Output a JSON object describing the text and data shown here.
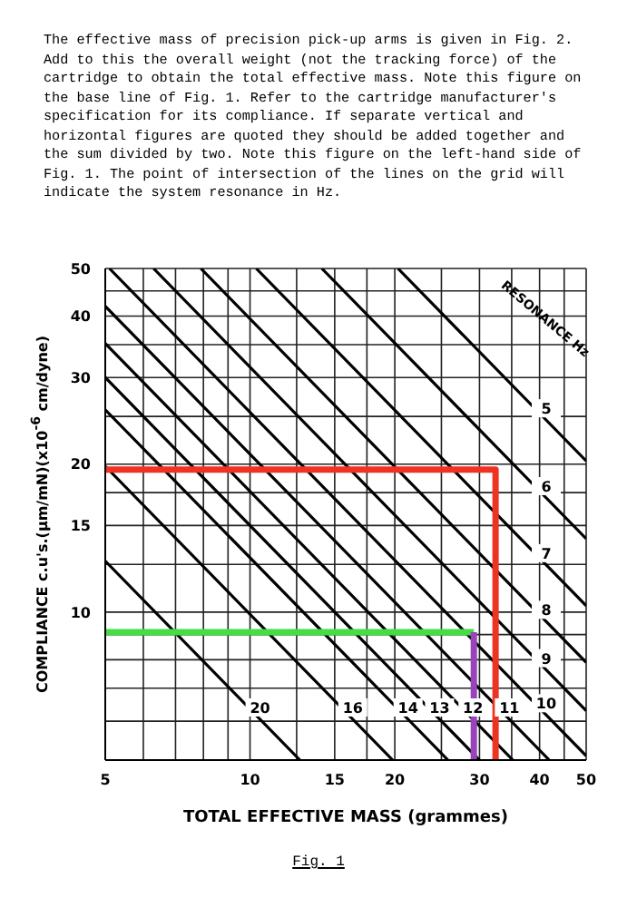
{
  "chart_data": {
    "type": "line",
    "xlabel": "TOTAL EFFECTIVE MASS (grammes)",
    "ylabel": "COMPLIANCE c.u's.(µm/mN)(x10$^{-6}$ cm/dyne)",
    "annotations": [
      "The effective mass of precision pick-up arms is given in Fig. 2.   Add to this the overall weight (not the tracking force) of the cartridge to obtain the total effective mass. Note this figure on the base line of Fig. 1.   Refer to the cartridge manufacturer's specification for its compliance. If separate vertical and horizontal figures are quoted they should be added together and the sum divided by two.   Note this figure on the left-hand side of Fig. 1.   The point of intersection of the lines on the grid will indicate the system resonance in Hz.",
      "RESONANCE Hz",
      "Fig. 1"
    ],
    "log": "xy",
    "grid": true,
    "marker": "none",
    "line_style": "solid",
    "legend": false,
    "xlim": [
      5,
      50
    ],
    "ylim": [
      5,
      50
    ],
    "xticks": [
      5,
      {
        "value": 6,
        "label": null
      },
      {
        "value": 7,
        "label": null
      },
      {
        "value": 8,
        "label": null
      },
      {
        "value": 9,
        "label": null
      },
      10,
      {
        "value": 12.5,
        "label": null
      },
      15,
      {
        "value": 17.5,
        "label": null
      },
      20,
      {
        "value": 25,
        "label": null
      },
      30,
      {
        "value": 35,
        "label": null
      },
      40,
      {
        "value": 45,
        "label": null
      },
      50
    ],
    "yticks": [
      {
        "value": 5,
        "label": null
      },
      {
        "value": 6,
        "label": null
      },
      {
        "value": 7,
        "label": null
      },
      {
        "value": 8,
        "label": null
      },
      {
        "value": 9,
        "label": null
      },
      10,
      {
        "value": 12.5,
        "label": null
      },
      15,
      {
        "value": 17.5,
        "label": null
      },
      20,
      {
        "value": 25,
        "label": null
      },
      30,
      {
        "value": 35,
        "label": null
      },
      40,
      {
        "value": 45,
        "label": null
      },
      50
    ],
    "series": [
      {
        "name": "5",
        "color": "#000000",
        "x": [
          20.3,
          50
        ],
        "values": [
          50,
          20.3
        ]
      },
      {
        "name": "6",
        "color": "#000000",
        "x": [
          14.1,
          50
        ],
        "values": [
          50,
          14.1
        ]
      },
      {
        "name": "7",
        "color": "#000000",
        "x": [
          10.3,
          50
        ],
        "values": [
          50,
          10.3
        ]
      },
      {
        "name": "8",
        "color": "#000000",
        "x": [
          7.9,
          50
        ],
        "values": [
          50,
          7.9
        ]
      },
      {
        "name": "9",
        "color": "#000000",
        "x": [
          6.3,
          50
        ],
        "values": [
          50,
          6.3
        ]
      },
      {
        "name": "10",
        "color": "#000000",
        "x": [
          5.1,
          50
        ],
        "values": [
          50,
          5.1
        ]
      },
      {
        "name": "11",
        "color": "#000000",
        "x": [
          5,
          41.9
        ],
        "values": [
          41.9,
          5
        ]
      },
      {
        "name": "12",
        "color": "#000000",
        "x": [
          5,
          35.2
        ],
        "values": [
          35.2,
          5
        ]
      },
      {
        "name": "13",
        "color": "#000000",
        "x": [
          5,
          30
        ],
        "values": [
          30,
          5
        ]
      },
      {
        "name": "14",
        "color": "#000000",
        "x": [
          5,
          25.8
        ],
        "values": [
          25.8,
          5
        ]
      },
      {
        "name": "16",
        "color": "#000000",
        "x": [
          5,
          19.8
        ],
        "values": [
          19.8,
          5
        ]
      },
      {
        "name": "20",
        "color": "#000000",
        "x": [
          5,
          12.7
        ],
        "values": [
          12.7,
          5
        ]
      },
      {
        "color": "#ee3322",
        "x": [
          5,
          32.4,
          32.4
        ],
        "values": [
          19.5,
          19.5,
          5
        ]
      },
      {
        "color": "#44dd44",
        "x": [
          5,
          29.2
        ],
        "values": [
          9.1,
          9.1
        ]
      },
      {
        "color": "#9944bb",
        "x": [
          29.2,
          29.2
        ],
        "values": [
          5,
          9.1
        ]
      }
    ]
  }
}
